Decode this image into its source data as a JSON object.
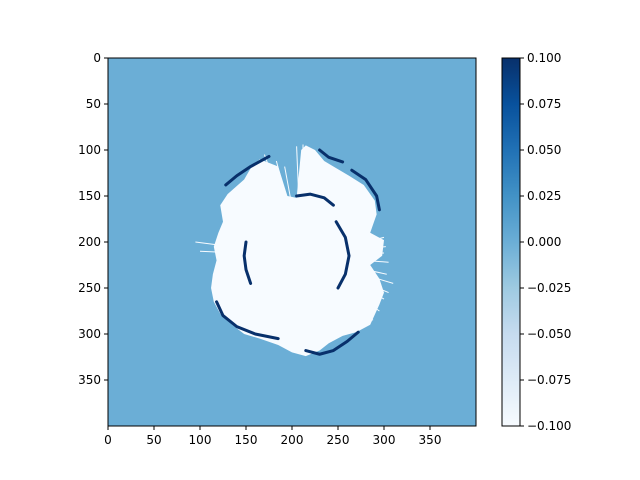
{
  "chart_data": {
    "type": "heatmap",
    "title": "",
    "xlabel": "",
    "ylabel": "",
    "image_size": [
      400,
      400
    ],
    "xlim": [
      0,
      400
    ],
    "ylim": [
      400,
      0
    ],
    "x_ticks": [
      0,
      50,
      100,
      150,
      200,
      250,
      300,
      350
    ],
    "y_ticks": [
      0,
      50,
      100,
      150,
      200,
      250,
      300,
      350
    ],
    "colormap": "Blues",
    "value_range": [
      -0.1,
      0.1
    ],
    "background_value": 0.0,
    "colorbar": {
      "ticks": [
        0.1,
        0.075,
        0.05,
        0.025,
        0.0,
        -0.025,
        -0.05,
        -0.075,
        -0.1
      ],
      "tick_labels": [
        "0.100",
        "0.075",
        "0.050",
        "0.025",
        "0.000",
        "−0.025",
        "−0.050",
        "−0.075",
        "−0.100"
      ]
    },
    "colors": {
      "low": "#f7fbff",
      "mid": "#6baed6",
      "high": "#08306b"
    },
    "scan_region": {
      "description_value_inside": -0.1,
      "edge_value": 0.1,
      "center": [
        210,
        215
      ],
      "boundary_polygon": [
        [
          165,
          110
        ],
        [
          185,
          118
        ],
        [
          195,
          150
        ],
        [
          205,
          152
        ],
        [
          210,
          100
        ],
        [
          215,
          95
        ],
        [
          225,
          100
        ],
        [
          235,
          112
        ],
        [
          245,
          118
        ],
        [
          262,
          128
        ],
        [
          278,
          138
        ],
        [
          290,
          155
        ],
        [
          292,
          170
        ],
        [
          285,
          190
        ],
        [
          300,
          198
        ],
        [
          298,
          215
        ],
        [
          285,
          225
        ],
        [
          295,
          240
        ],
        [
          300,
          255
        ],
        [
          295,
          268
        ],
        [
          285,
          290
        ],
        [
          270,
          298
        ],
        [
          255,
          302
        ],
        [
          240,
          310
        ],
        [
          230,
          318
        ],
        [
          215,
          324
        ],
        [
          200,
          320
        ],
        [
          185,
          312
        ],
        [
          165,
          305
        ],
        [
          148,
          300
        ],
        [
          135,
          290
        ],
        [
          122,
          278
        ],
        [
          115,
          265
        ],
        [
          112,
          250
        ],
        [
          114,
          235
        ],
        [
          118,
          220
        ],
        [
          115,
          205
        ],
        [
          120,
          190
        ],
        [
          125,
          178
        ],
        [
          122,
          160
        ],
        [
          130,
          148
        ],
        [
          148,
          132
        ],
        [
          155,
          120
        ]
      ],
      "dark_edge_segments": [
        [
          [
            175,
            107
          ],
          [
            155,
            118
          ],
          [
            140,
            128
          ],
          [
            128,
            138
          ]
        ],
        [
          [
            230,
            100
          ],
          [
            240,
            108
          ],
          [
            255,
            113
          ]
        ],
        [
          [
            265,
            122
          ],
          [
            280,
            132
          ],
          [
            292,
            150
          ],
          [
            295,
            165
          ]
        ],
        [
          [
            118,
            265
          ],
          [
            125,
            280
          ],
          [
            140,
            292
          ],
          [
            160,
            300
          ],
          [
            185,
            305
          ]
        ],
        [
          [
            215,
            318
          ],
          [
            230,
            322
          ],
          [
            245,
            318
          ],
          [
            260,
            308
          ],
          [
            272,
            298
          ]
        ],
        [
          [
            205,
            150
          ],
          [
            220,
            148
          ],
          [
            235,
            152
          ],
          [
            245,
            160
          ]
        ],
        [
          [
            248,
            178
          ],
          [
            258,
            195
          ],
          [
            262,
            215
          ],
          [
            258,
            235
          ],
          [
            250,
            250
          ]
        ],
        [
          [
            150,
            200
          ],
          [
            148,
            215
          ],
          [
            150,
            230
          ],
          [
            155,
            245
          ]
        ]
      ],
      "ray_endpoints": [
        [
          170,
          105
        ],
        [
          183,
          112
        ],
        [
          192,
          118
        ],
        [
          205,
          96
        ],
        [
          212,
          94
        ],
        [
          300,
          195
        ],
        [
          302,
          205
        ],
        [
          300,
          212
        ],
        [
          305,
          222
        ],
        [
          303,
          235
        ],
        [
          310,
          245
        ],
        [
          305,
          255
        ],
        [
          300,
          262
        ],
        [
          295,
          275
        ],
        [
          288,
          285
        ],
        [
          95,
          200
        ],
        [
          100,
          210
        ]
      ]
    }
  }
}
